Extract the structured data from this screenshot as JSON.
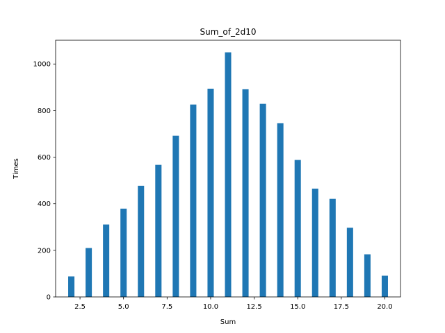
{
  "chart_data": {
    "type": "bar",
    "title": "Sum_of_2d10",
    "xlabel": "Sum",
    "ylabel": "Times",
    "x": [
      2,
      3,
      4,
      5,
      6,
      7,
      8,
      9,
      10,
      11,
      12,
      13,
      14,
      15,
      16,
      17,
      18,
      19,
      20
    ],
    "values": [
      88,
      210,
      311,
      379,
      477,
      567,
      692,
      826,
      894,
      1050,
      892,
      829,
      746,
      588,
      465,
      421,
      297,
      183,
      91
    ],
    "xlim": [
      1.1,
      20.9
    ],
    "ylim": [
      0,
      1102
    ],
    "xticks": [
      2.5,
      5.0,
      7.5,
      10.0,
      12.5,
      15.0,
      17.5,
      20.0
    ],
    "xtick_labels": [
      "2.5",
      "5.0",
      "7.5",
      "10.0",
      "12.5",
      "15.0",
      "17.5",
      "20.0"
    ],
    "yticks": [
      0,
      200,
      400,
      600,
      800,
      1000
    ],
    "ytick_labels": [
      "0",
      "200",
      "400",
      "600",
      "800",
      "1000"
    ],
    "bar_color": "#1f77b4",
    "grid": false,
    "legend": false
  }
}
